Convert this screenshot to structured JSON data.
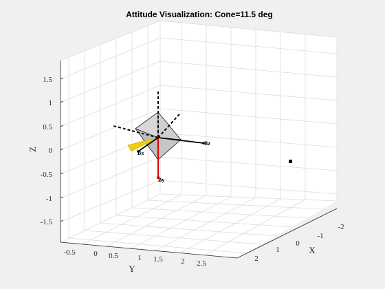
{
  "chart_data": {
    "type": "3d-attitude",
    "title": "Attitude Visualization: Cone=11.5 deg",
    "xlabel": "X",
    "ylabel": "Y",
    "zlabel": "Z",
    "xlim": [
      -2,
      2
    ],
    "ylim": [
      -0.5,
      2.5
    ],
    "zlim": [
      -1.5,
      1.5
    ],
    "x_ticks": [
      "-2",
      "-1",
      "0",
      "1",
      "2"
    ],
    "y_ticks": [
      "-0.5",
      "0",
      "0.5",
      "1",
      "1.5",
      "2",
      "2.5"
    ],
    "z_ticks": [
      "1.5",
      "1",
      "0.5",
      "0",
      "-0.5",
      "-1",
      "-1.5"
    ],
    "grid": true,
    "body_axis_labels": [
      "Bx",
      "By",
      "Bz"
    ],
    "colors": {
      "by_axis": "#e00000",
      "cone": "#f0d000",
      "frame": "#000000",
      "background": "#f0f0f0"
    }
  }
}
